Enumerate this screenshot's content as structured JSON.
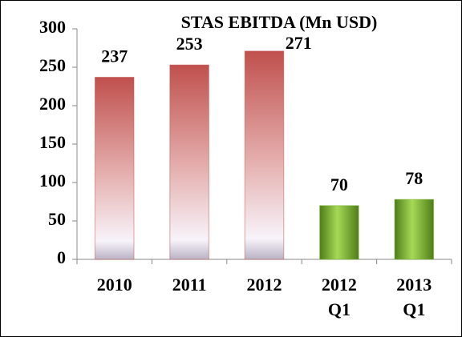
{
  "chart_data": {
    "type": "bar",
    "title": "STAS EBITDA (Mn USD)",
    "categories": [
      "2010",
      "2011",
      "2012",
      "2012 Q1",
      "2013 Q1"
    ],
    "values": [
      237,
      253,
      271,
      70,
      78
    ],
    "colors": [
      "#c0504d",
      "#c0504d",
      "#c0504d",
      "#7ab32e",
      "#7ab32e"
    ],
    "ylim": [
      0,
      300
    ],
    "yticks": [
      0,
      50,
      100,
      150,
      200,
      250,
      300
    ],
    "grid": false
  }
}
